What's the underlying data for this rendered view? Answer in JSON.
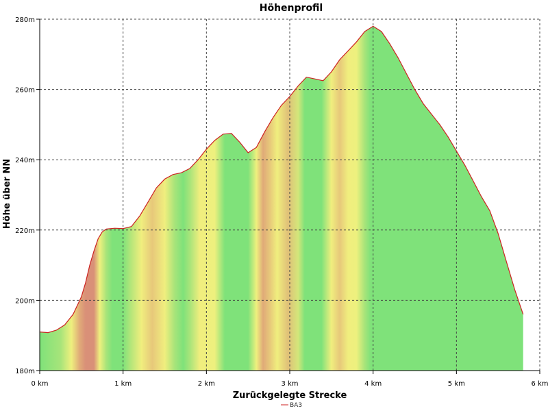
{
  "chart_data": {
    "type": "area",
    "title": "Höhenprofil",
    "xlabel": "Zurückgelegte Strecke",
    "ylabel": "Höhe über NN",
    "xlim": [
      0,
      6
    ],
    "ylim": [
      180,
      280
    ],
    "x_unit": "km",
    "x_ticks": [
      0,
      1,
      2,
      3,
      4,
      5,
      6
    ],
    "x_tick_labels": [
      "0 km",
      "1 km",
      "2 km",
      "3 km",
      "4 km",
      "5 km",
      "6 km"
    ],
    "y_ticks": [
      180,
      200,
      220,
      240,
      260,
      280
    ],
    "y_tick_labels": [
      "180m",
      "200m",
      "220m",
      "240m",
      "260m",
      "280m"
    ],
    "grid": true,
    "legend_position": "bottom-center",
    "series": [
      {
        "name": "BA3",
        "color": "#cc2222",
        "x": [
          0,
          0.1,
          0.2,
          0.3,
          0.4,
          0.5,
          0.55,
          0.6,
          0.65,
          0.7,
          0.75,
          0.8,
          0.9,
          1.0,
          1.1,
          1.2,
          1.3,
          1.4,
          1.5,
          1.6,
          1.7,
          1.8,
          1.9,
          2.0,
          2.1,
          2.2,
          2.3,
          2.4,
          2.5,
          2.6,
          2.7,
          2.8,
          2.9,
          3.0,
          3.1,
          3.2,
          3.3,
          3.4,
          3.5,
          3.6,
          3.7,
          3.8,
          3.9,
          4.0,
          4.1,
          4.2,
          4.3,
          4.4,
          4.5,
          4.6,
          4.7,
          4.8,
          4.9,
          5.0,
          5.1,
          5.2,
          5.3,
          5.4,
          5.5,
          5.6,
          5.7,
          5.8
        ],
        "y": [
          191,
          190.8,
          191.5,
          193,
          196,
          201,
          205,
          210,
          214,
          217.5,
          219.5,
          220.3,
          220.5,
          220.4,
          221,
          224,
          228,
          232,
          234.5,
          235.8,
          236.3,
          237.5,
          240,
          243,
          245.5,
          247.3,
          247.5,
          245,
          242,
          243.5,
          248,
          252,
          255.5,
          258,
          261,
          263.5,
          263,
          262.5,
          265,
          268.5,
          271,
          273.5,
          276.5,
          278,
          276.5,
          273,
          269,
          264.5,
          260,
          256,
          253,
          250,
          246.5,
          242.5,
          238.5,
          234,
          229.5,
          225.5,
          219,
          211,
          203,
          196
        ]
      }
    ],
    "slope_stops": [
      {
        "x": 0.0,
        "color": "#7fe27a"
      },
      {
        "x": 0.25,
        "color": "#a7e47a"
      },
      {
        "x": 0.38,
        "color": "#eef07e"
      },
      {
        "x": 0.48,
        "color": "#e0aa78"
      },
      {
        "x": 0.55,
        "color": "#d99078"
      },
      {
        "x": 0.65,
        "color": "#d99078"
      },
      {
        "x": 0.72,
        "color": "#eef07e"
      },
      {
        "x": 0.8,
        "color": "#a7e47a"
      },
      {
        "x": 0.87,
        "color": "#7fe27a"
      },
      {
        "x": 1.0,
        "color": "#7fe27a"
      },
      {
        "x": 1.1,
        "color": "#b8e67a"
      },
      {
        "x": 1.22,
        "color": "#f0ee7e"
      },
      {
        "x": 1.35,
        "color": "#e7c87a"
      },
      {
        "x": 1.5,
        "color": "#f0ee7e"
      },
      {
        "x": 1.62,
        "color": "#a7e47a"
      },
      {
        "x": 1.72,
        "color": "#7fe27a"
      },
      {
        "x": 1.8,
        "color": "#a7e47a"
      },
      {
        "x": 1.92,
        "color": "#f0ee7e"
      },
      {
        "x": 2.1,
        "color": "#eef07e"
      },
      {
        "x": 2.22,
        "color": "#7fe27a"
      },
      {
        "x": 2.5,
        "color": "#7fe27a"
      },
      {
        "x": 2.6,
        "color": "#eef07e"
      },
      {
        "x": 2.68,
        "color": "#e0aa78"
      },
      {
        "x": 2.76,
        "color": "#e7c87a"
      },
      {
        "x": 2.85,
        "color": "#f0ee7e"
      },
      {
        "x": 2.98,
        "color": "#e0c078"
      },
      {
        "x": 3.1,
        "color": "#d4e67a"
      },
      {
        "x": 3.18,
        "color": "#7fe27a"
      },
      {
        "x": 3.38,
        "color": "#7fe27a"
      },
      {
        "x": 3.5,
        "color": "#f0ee7e"
      },
      {
        "x": 3.6,
        "color": "#e7c87a"
      },
      {
        "x": 3.7,
        "color": "#f0ee7e"
      },
      {
        "x": 3.8,
        "color": "#eef07e"
      },
      {
        "x": 3.9,
        "color": "#a7e47a"
      },
      {
        "x": 3.97,
        "color": "#7fe27a"
      },
      {
        "x": 6.0,
        "color": "#7fe27a"
      }
    ]
  }
}
